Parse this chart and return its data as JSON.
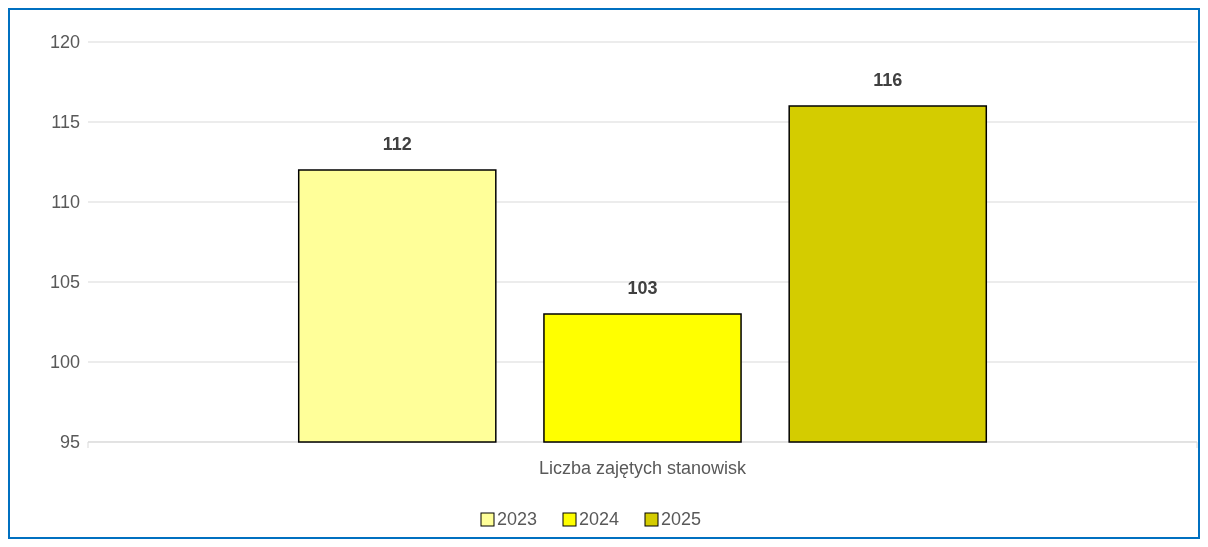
{
  "chart_data": {
    "type": "bar",
    "categories": [
      "Liczba zajętych stanowisk"
    ],
    "series": [
      {
        "name": "2023",
        "color": "#ffff99",
        "values": [
          112
        ]
      },
      {
        "name": "2024",
        "color": "#ffff00",
        "values": [
          103
        ]
      },
      {
        "name": "2025",
        "color": "#d4cc00",
        "values": [
          116
        ]
      }
    ],
    "ylim": [
      95,
      120
    ],
    "yticks": [
      95,
      100,
      105,
      110,
      115,
      120
    ],
    "grid": "y",
    "legend": "bottom",
    "data_labels": true
  }
}
